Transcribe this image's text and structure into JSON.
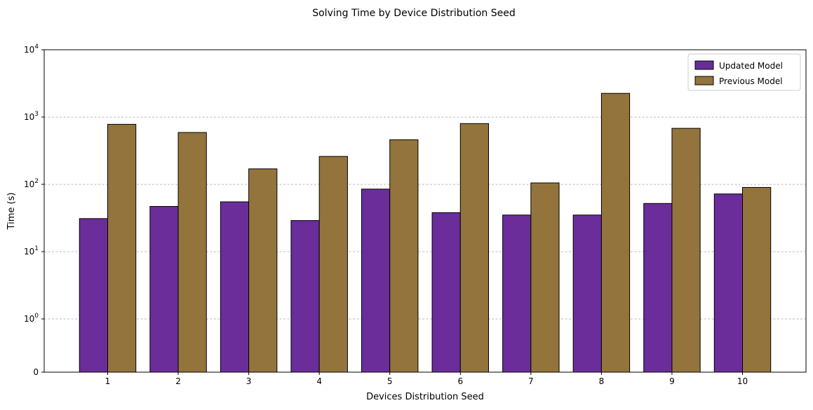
{
  "chart_data": {
    "type": "bar",
    "title": "Solving Time by Device Distribution Seed",
    "xlabel": "Devices Distribution Seed",
    "ylabel": "Time (s)",
    "yscale": "symlog",
    "ylim": [
      0,
      10000
    ],
    "yticks": [
      {
        "value": 0,
        "base": "0",
        "exp": ""
      },
      {
        "value": 1,
        "base": "10",
        "exp": "0"
      },
      {
        "value": 10,
        "base": "10",
        "exp": "1"
      },
      {
        "value": 100,
        "base": "10",
        "exp": "2"
      },
      {
        "value": 1000,
        "base": "10",
        "exp": "3"
      },
      {
        "value": 10000,
        "base": "10",
        "exp": "4"
      }
    ],
    "grid": "y-dashed",
    "legend_position": "top-right",
    "categories": [
      "1",
      "2",
      "3",
      "4",
      "5",
      "6",
      "7",
      "8",
      "9",
      "10"
    ],
    "series": [
      {
        "name": "Updated Model",
        "color": "#6b2d9a",
        "values": [
          31,
          47,
          55,
          29,
          85,
          38,
          35,
          35,
          52,
          72
        ]
      },
      {
        "name": "Previous Model",
        "color": "#94743d",
        "values": [
          780,
          590,
          170,
          260,
          460,
          800,
          105,
          2250,
          680,
          90
        ]
      }
    ]
  }
}
